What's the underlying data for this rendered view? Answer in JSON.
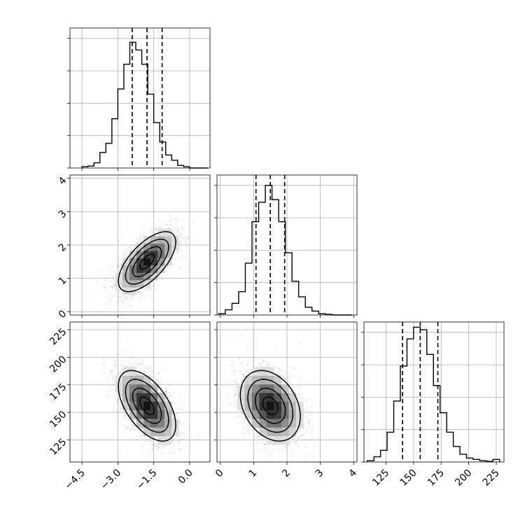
{
  "chart_data": {
    "type": "corner",
    "params": [
      {
        "id": "p1",
        "range": [
          -5.0,
          0.85
        ],
        "ticks": [
          -4.5,
          -3.0,
          -1.5,
          0.0
        ],
        "tick_labels": [
          "−4.5",
          "−3.0",
          "−1.5",
          "0.0"
        ],
        "mean": -1.78,
        "sd": 0.6,
        "quantiles": [
          -2.4,
          -1.78,
          -1.15
        ]
      },
      {
        "id": "p2",
        "range": [
          -0.1,
          4.1
        ],
        "ticks": [
          0,
          1,
          2,
          3,
          4
        ],
        "tick_labels": [
          "0",
          "1",
          "2",
          "3",
          "4"
        ],
        "mean": 1.5,
        "sd": 0.45,
        "quantiles": [
          1.07,
          1.5,
          1.93
        ]
      },
      {
        "id": "p3",
        "range": [
          105,
          232
        ],
        "ticks": [
          125,
          150,
          175,
          200,
          225
        ],
        "tick_labels": [
          "125",
          "150",
          "175",
          "200",
          "225"
        ],
        "mean": 156,
        "sd": 16,
        "quantiles": [
          140,
          156,
          172
        ]
      }
    ],
    "histograms": [
      {
        "param": "p1",
        "bins": [
          -4.5,
          -4.25,
          -4.0,
          -3.75,
          -3.5,
          -3.25,
          -3.0,
          -2.75,
          -2.5,
          -2.25,
          -2.0,
          -1.75,
          -1.5,
          -1.25,
          -1.0,
          -0.75,
          -0.5,
          -0.25,
          0.0,
          0.25,
          0.5,
          0.75
        ],
        "counts": [
          0.01,
          0.015,
          0.04,
          0.12,
          0.19,
          0.38,
          0.61,
          0.8,
          0.97,
          0.91,
          0.8,
          0.57,
          0.35,
          0.2,
          0.1,
          0.06,
          0.02,
          0.01,
          0.0,
          0.0,
          0.0
        ]
      },
      {
        "param": "p2",
        "bins": [
          -0.05,
          0.15,
          0.35,
          0.55,
          0.75,
          0.95,
          1.15,
          1.35,
          1.55,
          1.75,
          1.95,
          2.15,
          2.35,
          2.55,
          2.75,
          2.95,
          3.15,
          3.35,
          3.55,
          3.75,
          3.95
        ],
        "counts": [
          0.01,
          0.04,
          0.09,
          0.18,
          0.4,
          0.72,
          0.87,
          1.0,
          0.89,
          0.72,
          0.48,
          0.26,
          0.14,
          0.06,
          0.03,
          0.01,
          0.005,
          0.0,
          0.0,
          0.0
        ]
      },
      {
        "param": "p3",
        "bins": [
          108,
          114,
          120,
          126,
          132,
          138,
          144,
          150,
          156,
          162,
          168,
          174,
          180,
          186,
          192,
          198,
          204,
          210,
          216,
          222,
          228
        ],
        "counts": [
          0.01,
          0.04,
          0.09,
          0.23,
          0.47,
          0.74,
          0.95,
          1.04,
          1.02,
          0.83,
          0.59,
          0.38,
          0.23,
          0.12,
          0.06,
          0.03,
          0.02,
          0.01,
          0.005,
          0.02
        ]
      }
    ],
    "pairs": [
      {
        "x": "p1",
        "y": "p2",
        "correlation": 0.65
      },
      {
        "x": "p1",
        "y": "p3",
        "correlation": -0.55
      },
      {
        "x": "p2",
        "y": "p3",
        "correlation": -0.3
      }
    ],
    "contour_levels_sigma": [
      0.5,
      1.0,
      1.5,
      2.0
    ],
    "scatter_color": "#000000",
    "hist_color": "#000000",
    "grid": true
  }
}
